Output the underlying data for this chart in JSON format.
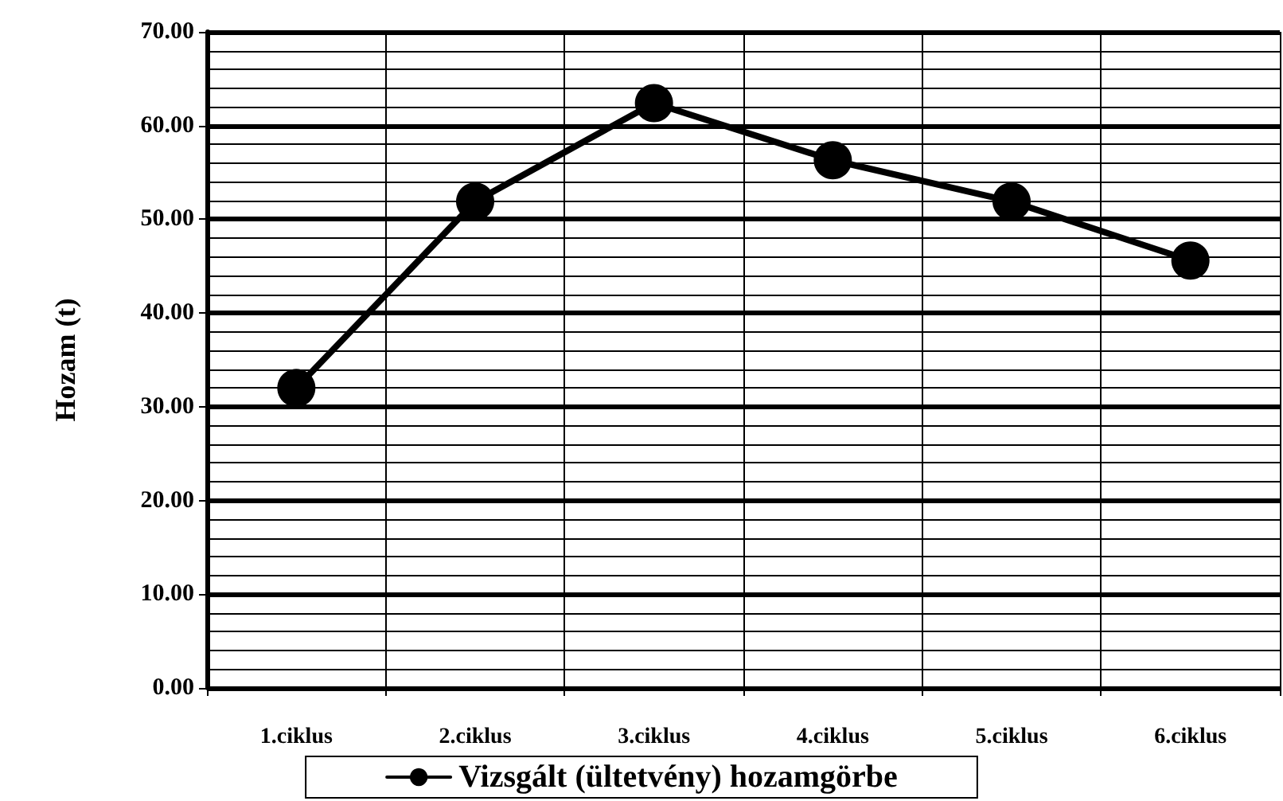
{
  "chart_data": {
    "type": "line",
    "ylabel": "Hozam (t)",
    "categories": [
      "1.ciklus",
      "2.ciklus",
      "3.ciklus",
      "4.ciklus",
      "5.ciklus",
      "6.ciklus"
    ],
    "series": [
      {
        "name": "Vizsgált (ültetvény) hozamgörbe",
        "color": "#000000",
        "values": [
          32.0,
          51.9,
          62.4,
          56.3,
          51.9,
          45.6
        ]
      }
    ],
    "ylim": [
      0,
      70
    ],
    "yticks": [
      {
        "value": 0,
        "label": "0.00"
      },
      {
        "value": 10,
        "label": "10.00"
      },
      {
        "value": 20,
        "label": "20.00"
      },
      {
        "value": 30,
        "label": "30.00"
      },
      {
        "value": 40,
        "label": "40.00"
      },
      {
        "value": 50,
        "label": "50.00"
      },
      {
        "value": 60,
        "label": "60.00"
      },
      {
        "value": 70,
        "label": "70.00"
      }
    ],
    "grid": true,
    "legend": "bottom",
    "marker": "circle",
    "line_style": "solid"
  }
}
